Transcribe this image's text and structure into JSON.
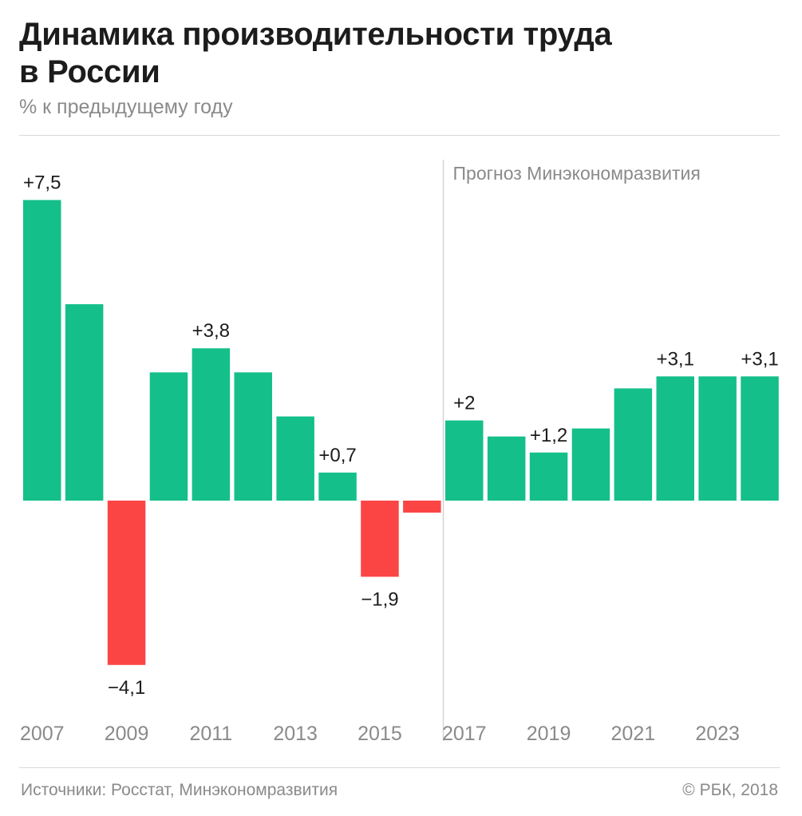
{
  "header": {
    "title_line1": "Динамика производительности труда",
    "title_line2": "в России",
    "subtitle": "% к предыдущему году"
  },
  "footer": {
    "sources": "Источники: Росстат, Минэкономразвития",
    "copyright": "© РБК, 2018"
  },
  "colors": {
    "positive": "#14bf8a",
    "negative": "#fb4545",
    "divider": "#d4d4d4",
    "label": "#1c1c1c",
    "axis_label": "#8a8a8a"
  },
  "chart_data": {
    "type": "bar",
    "categories": [
      "2007",
      "2008",
      "2009",
      "2010",
      "2011",
      "2012",
      "2013",
      "2014",
      "2015",
      "2016",
      "2017",
      "2018",
      "2019",
      "2020",
      "2021",
      "2022",
      "2023",
      "2024"
    ],
    "values": [
      7.5,
      4.9,
      -4.1,
      3.2,
      3.8,
      3.2,
      2.1,
      0.7,
      -1.9,
      -0.3,
      2.0,
      1.6,
      1.2,
      1.8,
      2.8,
      3.1,
      3.1,
      3.1
    ],
    "value_labels": [
      "+7,5",
      "",
      "−4,1",
      "",
      "+3,8",
      "",
      "",
      "+0,7",
      "−1,9",
      "",
      "+2",
      "",
      "+1,2",
      "",
      "",
      "+3,1",
      "",
      "+3,1"
    ],
    "tick_labels": [
      "2007",
      "",
      "2009",
      "",
      "2011",
      "",
      "2013",
      "",
      "2015",
      "",
      "2017",
      "",
      "2019",
      "",
      "2021",
      "",
      "2023",
      ""
    ],
    "forecast_start": "2017",
    "forecast_label": "Прогноз Минэкономразвития",
    "xlabel": "",
    "ylabel": "",
    "ylim": [
      -4.3,
      7.5
    ],
    "grid": false,
    "legend": "none"
  }
}
